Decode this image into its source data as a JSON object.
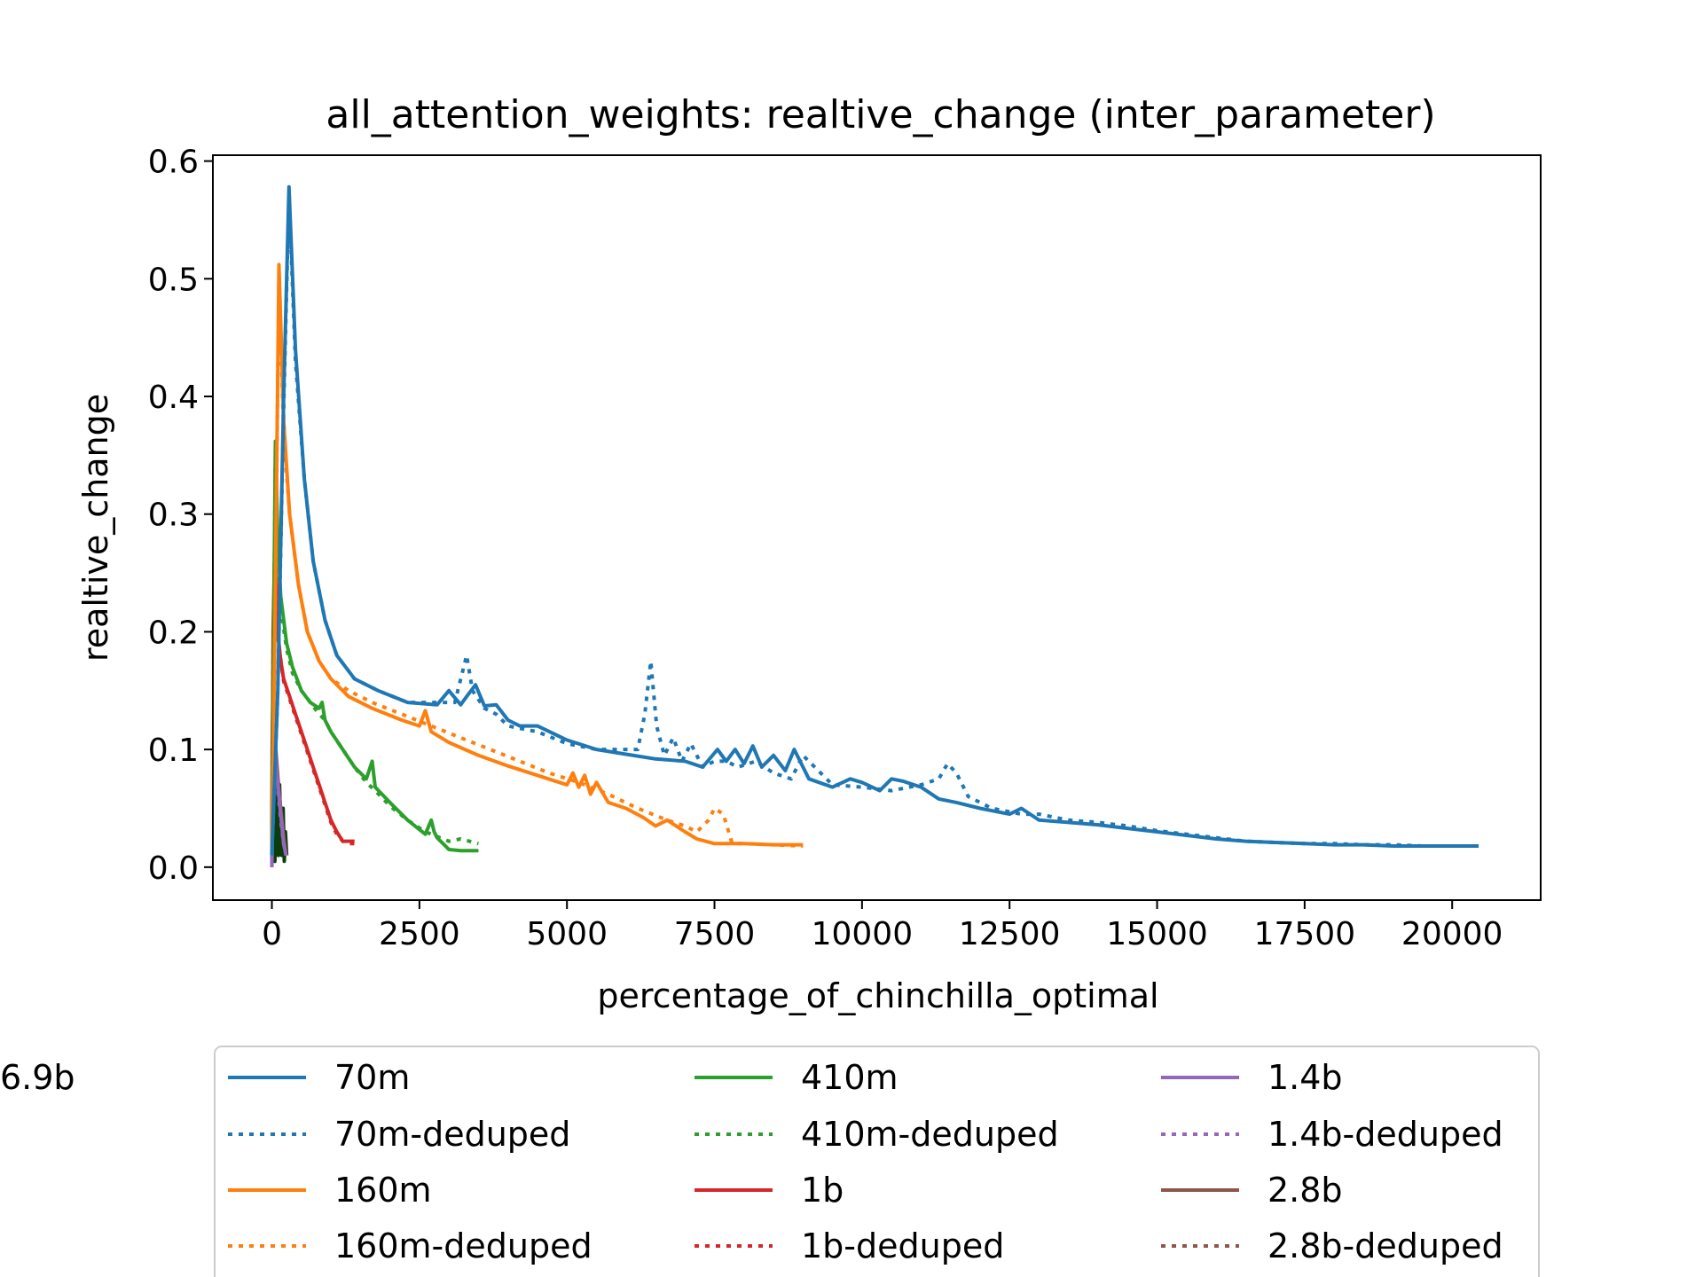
{
  "chart_data": {
    "type": "line",
    "title": "all_attention_weights: realtive_change (inter_parameter)",
    "xlabel": "percentage_of_chinchilla_optimal",
    "ylabel": "realtive_change",
    "xlim": [
      -1000,
      21500
    ],
    "ylim": [
      -0.028,
      0.605
    ],
    "xticks": [
      0,
      2500,
      5000,
      7500,
      10000,
      12500,
      15000,
      17500,
      20000
    ],
    "xtick_labels": [
      "0",
      "2500",
      "5000",
      "7500",
      "10000",
      "12500",
      "15000",
      "17500",
      "20000"
    ],
    "yticks": [
      0.0,
      0.1,
      0.2,
      0.3,
      0.4,
      0.5,
      0.6
    ],
    "ytick_labels": [
      "0.0",
      "0.1",
      "0.2",
      "0.3",
      "0.4",
      "0.5",
      "0.6"
    ],
    "grid": false,
    "legend_position": "below plot, 3 columns",
    "series": [
      {
        "name": "70m",
        "color": "#1f77b4",
        "style": "solid",
        "x": [
          0,
          100,
          200,
          290,
          400,
          550,
          700,
          900,
          1100,
          1400,
          1800,
          2300,
          2800,
          3000,
          3200,
          3300,
          3450,
          3600,
          3800,
          4000,
          4200,
          4500,
          5000,
          5500,
          6000,
          6500,
          7000,
          7300,
          7550,
          7700,
          7850,
          8000,
          8150,
          8300,
          8500,
          8700,
          8850,
          9100,
          9500,
          9800,
          10000,
          10300,
          10500,
          10700,
          11000,
          11300,
          11600,
          12000,
          12500,
          12700,
          13000,
          13500,
          14000,
          14500,
          15000,
          15500,
          16000,
          16500,
          17000,
          17500,
          18000,
          18500,
          19000,
          19500,
          20000,
          20450
        ],
        "y": [
          0.01,
          0.15,
          0.4,
          0.578,
          0.44,
          0.33,
          0.26,
          0.21,
          0.18,
          0.16,
          0.15,
          0.14,
          0.138,
          0.15,
          0.138,
          0.145,
          0.155,
          0.137,
          0.138,
          0.125,
          0.12,
          0.12,
          0.108,
          0.1,
          0.096,
          0.092,
          0.09,
          0.085,
          0.1,
          0.09,
          0.1,
          0.088,
          0.103,
          0.085,
          0.095,
          0.082,
          0.1,
          0.075,
          0.068,
          0.075,
          0.072,
          0.065,
          0.075,
          0.073,
          0.068,
          0.058,
          0.055,
          0.05,
          0.045,
          0.05,
          0.04,
          0.038,
          0.036,
          0.033,
          0.03,
          0.027,
          0.024,
          0.022,
          0.021,
          0.02,
          0.019,
          0.019,
          0.018,
          0.018,
          0.018,
          0.018
        ]
      },
      {
        "name": "70m-deduped",
        "color": "#1f77b4",
        "style": "dotted",
        "x": [
          0,
          100,
          200,
          290,
          400,
          550,
          700,
          900,
          1100,
          1400,
          1800,
          2300,
          2800,
          3100,
          3300,
          3400,
          3600,
          3800,
          4000,
          4500,
          5000,
          5500,
          6000,
          6200,
          6320,
          6420,
          6520,
          6650,
          6800,
          6950,
          7100,
          7300,
          7500,
          7700,
          7900,
          8200,
          8500,
          8800,
          9000,
          9500,
          10000,
          10500,
          11000,
          11300,
          11450,
          11600,
          11800,
          12200,
          12700,
          13000,
          13500,
          14000,
          14500,
          15000,
          15500,
          16000,
          16500,
          17000,
          17500,
          18000,
          18500,
          19000,
          19500,
          20000,
          20450
        ],
        "y": [
          0.01,
          0.15,
          0.39,
          0.57,
          0.43,
          0.33,
          0.26,
          0.21,
          0.18,
          0.16,
          0.15,
          0.14,
          0.14,
          0.14,
          0.18,
          0.15,
          0.135,
          0.13,
          0.12,
          0.115,
          0.105,
          0.1,
          0.1,
          0.1,
          0.13,
          0.175,
          0.12,
          0.095,
          0.11,
          0.09,
          0.105,
          0.085,
          0.09,
          0.09,
          0.085,
          0.09,
          0.08,
          0.075,
          0.095,
          0.07,
          0.068,
          0.065,
          0.07,
          0.075,
          0.088,
          0.08,
          0.06,
          0.05,
          0.045,
          0.045,
          0.04,
          0.038,
          0.035,
          0.031,
          0.028,
          0.025,
          0.022,
          0.021,
          0.02,
          0.02,
          0.019,
          0.019,
          0.018,
          0.018,
          0.018
        ]
      },
      {
        "name": "160m",
        "color": "#ff7f0e",
        "style": "solid",
        "x": [
          0,
          50,
          120,
          200,
          300,
          450,
          600,
          800,
          1000,
          1300,
          1700,
          2200,
          2500,
          2600,
          2700,
          3000,
          3500,
          4000,
          4500,
          5000,
          5100,
          5200,
          5300,
          5400,
          5500,
          5700,
          6000,
          6300,
          6500,
          6700,
          7000,
          7200,
          7500,
          8000,
          8500,
          9000
        ],
        "y": [
          0.01,
          0.2,
          0.512,
          0.38,
          0.3,
          0.24,
          0.2,
          0.175,
          0.16,
          0.145,
          0.135,
          0.125,
          0.12,
          0.133,
          0.115,
          0.106,
          0.095,
          0.086,
          0.078,
          0.07,
          0.08,
          0.068,
          0.078,
          0.062,
          0.072,
          0.055,
          0.05,
          0.042,
          0.035,
          0.04,
          0.03,
          0.024,
          0.02,
          0.02,
          0.019,
          0.019
        ]
      },
      {
        "name": "160m-deduped",
        "color": "#ff7f0e",
        "style": "dotted",
        "x": [
          0,
          50,
          120,
          200,
          300,
          450,
          600,
          800,
          1000,
          1300,
          1700,
          2200,
          2700,
          3200,
          3700,
          4200,
          4700,
          5200,
          5700,
          6200,
          6700,
          7000,
          7200,
          7400,
          7500,
          7650,
          7800,
          8000,
          8500,
          9000
        ],
        "y": [
          0.01,
          0.2,
          0.5,
          0.37,
          0.3,
          0.24,
          0.2,
          0.175,
          0.16,
          0.15,
          0.14,
          0.13,
          0.12,
          0.11,
          0.1,
          0.09,
          0.08,
          0.072,
          0.062,
          0.05,
          0.04,
          0.035,
          0.03,
          0.04,
          0.05,
          0.045,
          0.02,
          0.02,
          0.019,
          0.018
        ]
      },
      {
        "name": "410m",
        "color": "#2ca02c",
        "style": "solid",
        "x": [
          0,
          30,
          60,
          100,
          150,
          250,
          350,
          500,
          650,
          800,
          850,
          900,
          1000,
          1200,
          1400,
          1600,
          1700,
          1750,
          2000,
          2300,
          2600,
          2700,
          2750,
          2800,
          2900,
          3000,
          3200,
          3500
        ],
        "y": [
          0.01,
          0.2,
          0.362,
          0.28,
          0.23,
          0.19,
          0.17,
          0.15,
          0.14,
          0.135,
          0.14,
          0.125,
          0.115,
          0.1,
          0.085,
          0.075,
          0.09,
          0.068,
          0.055,
          0.04,
          0.028,
          0.04,
          0.03,
          0.025,
          0.02,
          0.015,
          0.014,
          0.014
        ]
      },
      {
        "name": "410m-deduped",
        "color": "#2ca02c",
        "style": "dotted",
        "x": [
          0,
          30,
          60,
          100,
          150,
          250,
          350,
          500,
          650,
          800,
          900,
          1000,
          1200,
          1400,
          1600,
          1750,
          2000,
          2300,
          2600,
          2800,
          3000,
          3200,
          3500
        ],
        "y": [
          0.01,
          0.2,
          0.35,
          0.27,
          0.22,
          0.185,
          0.165,
          0.15,
          0.14,
          0.13,
          0.125,
          0.115,
          0.1,
          0.085,
          0.072,
          0.065,
          0.052,
          0.04,
          0.03,
          0.026,
          0.022,
          0.024,
          0.02
        ]
      },
      {
        "name": "1b",
        "color": "#d62728",
        "style": "solid",
        "x": [
          0,
          20,
          50,
          100,
          150,
          200,
          300,
          400,
          500,
          600,
          700,
          800,
          900,
          1000,
          1100,
          1200,
          1300,
          1400
        ],
        "y": [
          0.01,
          0.2,
          0.278,
          0.2,
          0.175,
          0.16,
          0.145,
          0.13,
          0.115,
          0.1,
          0.085,
          0.07,
          0.055,
          0.04,
          0.03,
          0.022,
          0.022,
          0.022
        ]
      },
      {
        "name": "1b-deduped",
        "color": "#d62728",
        "style": "dotted",
        "x": [
          0,
          20,
          50,
          100,
          200,
          300,
          400,
          500,
          600,
          700,
          800,
          900,
          1000,
          1100,
          1200,
          1300,
          1400
        ],
        "y": [
          0.01,
          0.19,
          0.27,
          0.195,
          0.158,
          0.143,
          0.128,
          0.113,
          0.098,
          0.083,
          0.068,
          0.053,
          0.038,
          0.028,
          0.022,
          0.02,
          0.02
        ]
      },
      {
        "name": "1.4b",
        "color": "#9467bd",
        "style": "solid",
        "x": [
          0,
          10,
          40,
          80,
          120,
          160,
          200,
          240
        ],
        "y": [
          0.0,
          0.06,
          0.11,
          0.08,
          0.06,
          0.04,
          0.02,
          0.01
        ]
      },
      {
        "name": "1.4b-deduped",
        "color": "#9467bd",
        "style": "dotted",
        "x": [
          0,
          10,
          40,
          80,
          120,
          160,
          200,
          240
        ],
        "y": [
          0.0,
          0.05,
          0.1,
          0.075,
          0.055,
          0.035,
          0.02,
          0.01
        ]
      },
      {
        "name": "2.8b",
        "color": "#8c564b",
        "style": "solid",
        "x": [
          0,
          10,
          40,
          80,
          120,
          160,
          200,
          240
        ],
        "y": [
          0.0,
          0.07,
          0.12,
          0.09,
          0.065,
          0.045,
          0.025,
          0.01
        ]
      },
      {
        "name": "2.8b-deduped",
        "color": "#8c564b",
        "style": "dotted",
        "x": [
          0,
          10,
          40,
          80,
          120,
          160,
          200,
          240
        ],
        "y": [
          0.0,
          0.06,
          0.115,
          0.085,
          0.06,
          0.04,
          0.02,
          0.01
        ]
      },
      {
        "name": "6.9b",
        "color": "#0b3d0b",
        "style": "solid",
        "x": [
          0,
          5,
          15,
          30,
          50,
          70,
          90,
          110,
          130,
          150,
          170,
          190,
          210,
          230,
          250
        ],
        "y": [
          0.0,
          0.1,
          0.135,
          0.1,
          0.005,
          0.09,
          0.06,
          0.01,
          0.07,
          0.03,
          0.01,
          0.05,
          0.005,
          0.03,
          0.01
        ]
      }
    ]
  }
}
